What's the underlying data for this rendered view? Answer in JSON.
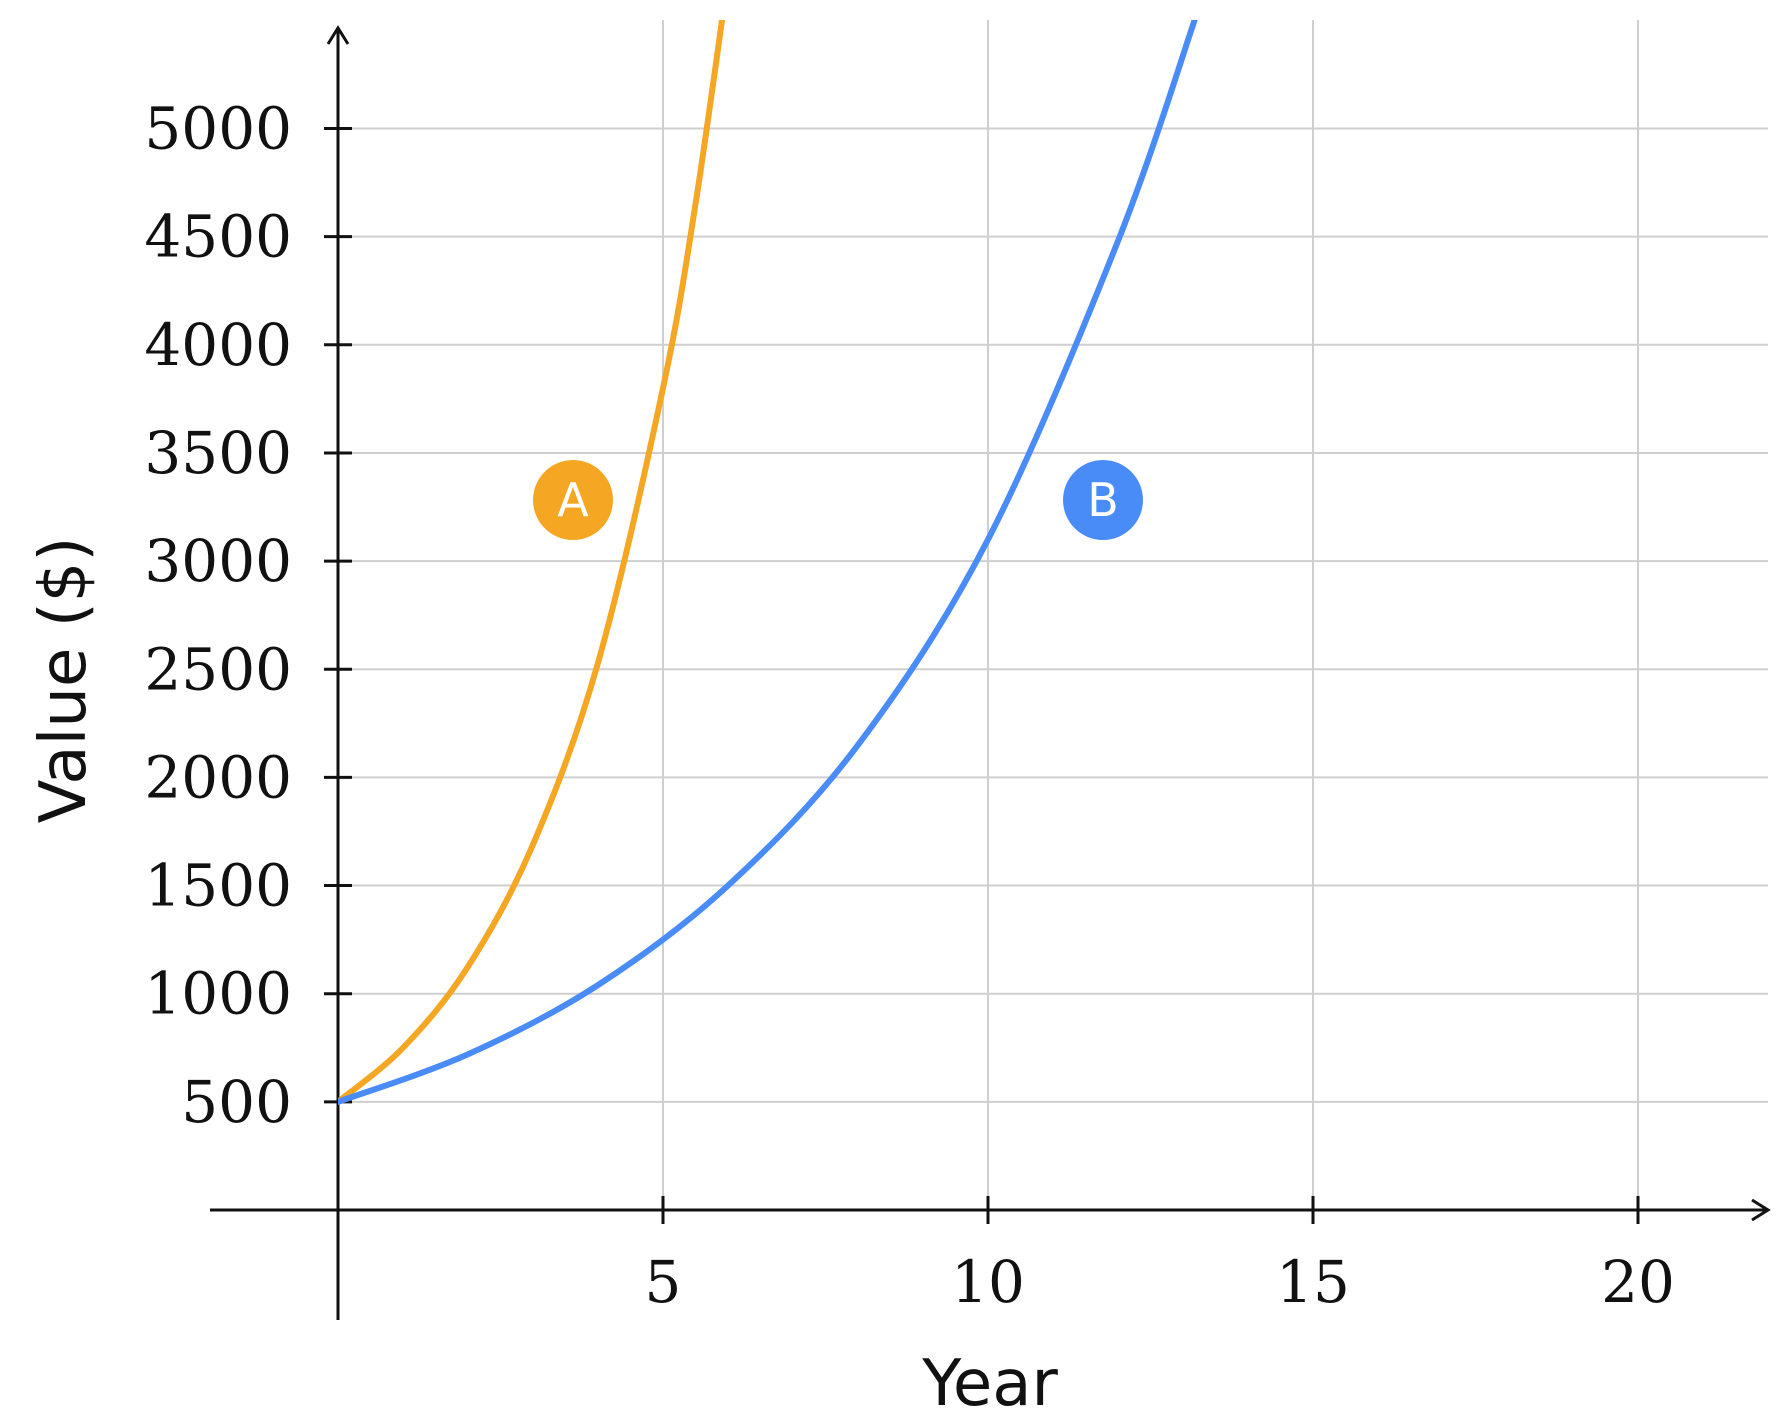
{
  "chart_data": {
    "type": "line",
    "title": "",
    "xlabel": "Year",
    "ylabel": "Value ($)",
    "xlim": [
      -10,
      22
    ],
    "ylim": [
      0,
      5500
    ],
    "xticks": [
      5,
      10,
      15,
      20
    ],
    "yticks": [
      500,
      1000,
      1500,
      2000,
      2500,
      3000,
      3500,
      4000,
      4500,
      5000
    ],
    "grid": true,
    "series": [
      {
        "label": "A",
        "color": "#F5A623",
        "x": [
          0,
          1,
          2,
          3,
          4,
          5,
          5.5,
          6
        ],
        "y": [
          500,
          750,
          1125,
          1690,
          2530,
          3800,
          4650,
          5700
        ]
      },
      {
        "label": "B",
        "color": "#4A8CF7",
        "x": [
          0,
          2,
          4,
          6,
          8,
          10,
          12,
          13.2
        ],
        "y": [
          500,
          720,
          1040,
          1500,
          2150,
          3100,
          4480,
          5520
        ]
      }
    ]
  }
}
